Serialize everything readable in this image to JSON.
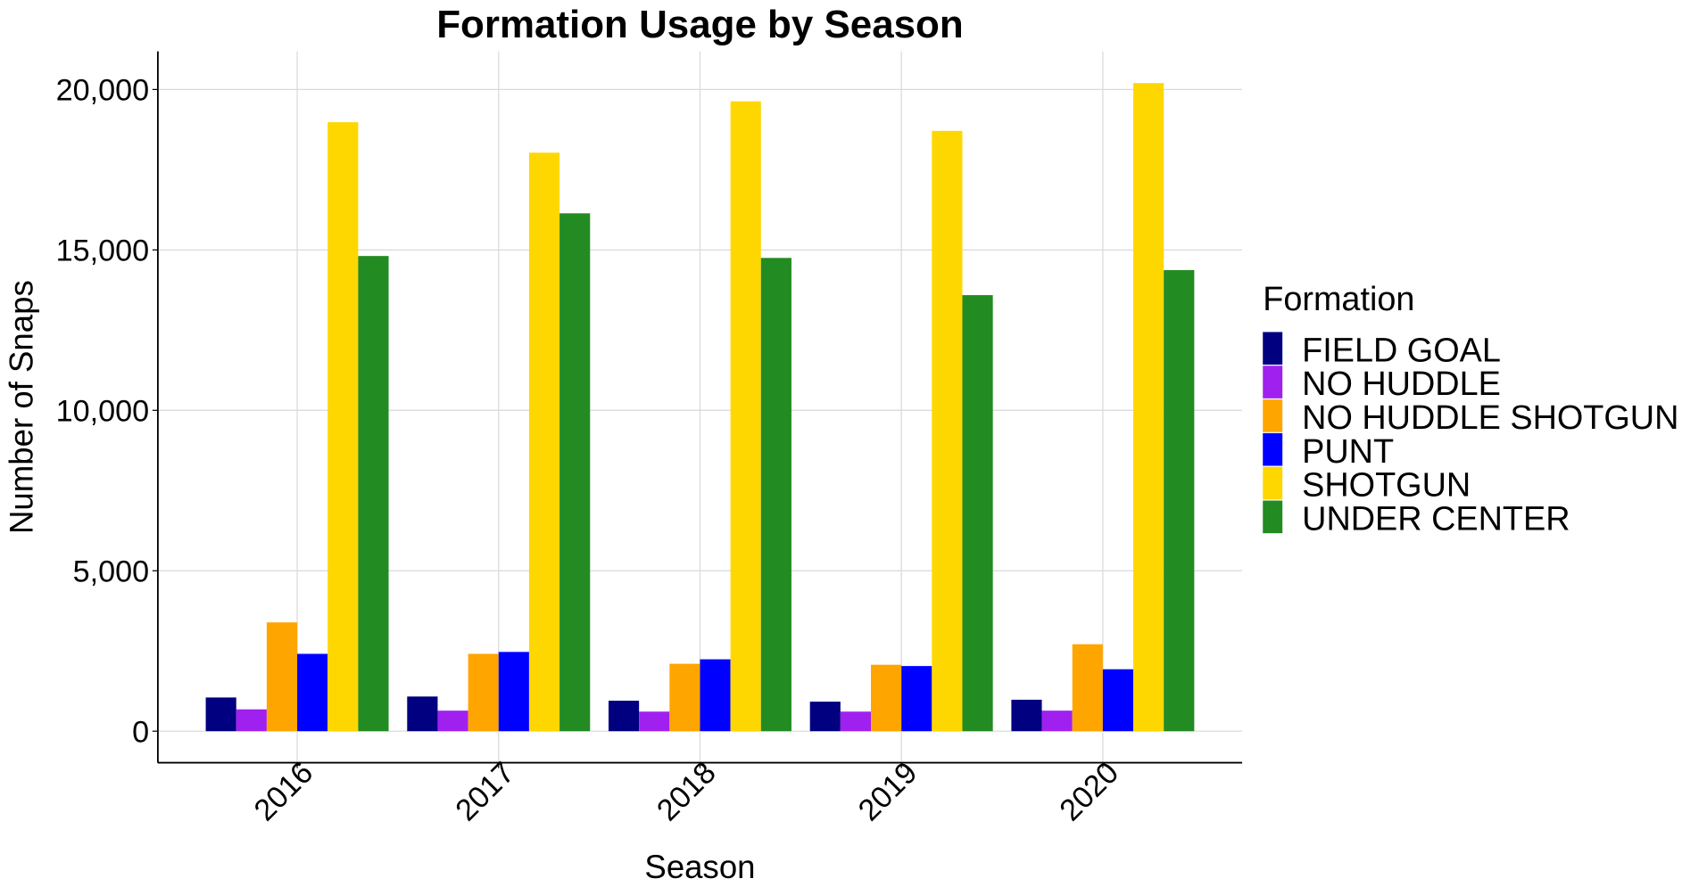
{
  "chart_data": {
    "type": "bar",
    "title": "Formation Usage by Season",
    "xlabel": "Season",
    "ylabel": "Number of Snaps",
    "ylim": [
      -1000,
      21200
    ],
    "yticks": [
      0,
      5000,
      10000,
      15000,
      20000
    ],
    "ytick_labels": [
      "0",
      "5,000",
      "10,000",
      "15,000",
      "20,000"
    ],
    "grid": true,
    "legend_title": "Formation",
    "legend_position": "right",
    "categories": [
      "2016",
      "2017",
      "2018",
      "2019",
      "2020"
    ],
    "series": [
      {
        "name": "FIELD GOAL",
        "color": "#000080",
        "values": [
          1050,
          1080,
          950,
          920,
          980
        ]
      },
      {
        "name": "NO HUDDLE",
        "color": "#A020F0",
        "values": [
          680,
          640,
          610,
          610,
          640
        ]
      },
      {
        "name": "NO HUDDLE SHOTGUN",
        "color": "#FFA500",
        "values": [
          3390,
          2410,
          2100,
          2070,
          2710
        ]
      },
      {
        "name": "PUNT",
        "color": "#0000FF",
        "values": [
          2410,
          2470,
          2240,
          2030,
          1930
        ]
      },
      {
        "name": "SHOTGUN",
        "color": "#FFD700",
        "values": [
          18980,
          18030,
          19630,
          18710,
          20200
        ]
      },
      {
        "name": "UNDER CENTER",
        "color": "#228B22",
        "values": [
          14810,
          16140,
          14750,
          13590,
          14370
        ]
      }
    ]
  }
}
